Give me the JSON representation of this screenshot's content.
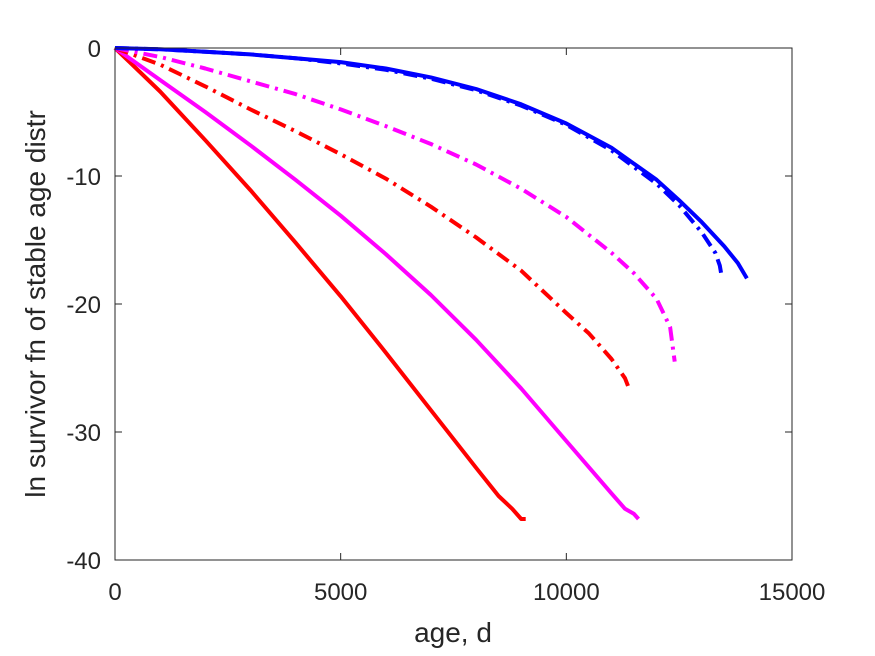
{
  "chart_data": {
    "type": "line",
    "title": "",
    "xlabel": "age, d",
    "ylabel": "ln survivor fn of stable age distr",
    "xlim": [
      0,
      15000
    ],
    "ylim": [
      -40,
      0
    ],
    "xticks": [
      0,
      5000,
      10000,
      15000
    ],
    "yticks": [
      0,
      -10,
      -20,
      -30,
      -40
    ],
    "xtick_labels": [
      "0",
      "5000",
      "10000",
      "15000"
    ],
    "ytick_labels": [
      "0",
      "-10",
      "-20",
      "-30",
      "-40"
    ],
    "grid": false,
    "legend": "none",
    "series": [
      {
        "color": "#ff0000",
        "style": "solid",
        "x": [
          0,
          1000,
          2000,
          3000,
          4000,
          5000,
          6000,
          7000,
          8000,
          8500,
          8800,
          9000,
          9100
        ],
        "y": [
          0,
          -3.4,
          -7.2,
          -11.1,
          -15.2,
          -19.4,
          -23.8,
          -28.3,
          -32.8,
          -35.0,
          -36.0,
          -36.8,
          -36.8
        ]
      },
      {
        "color": "#ff00ff",
        "style": "solid",
        "x": [
          0,
          1000,
          2000,
          3000,
          4000,
          5000,
          6000,
          7000,
          8000,
          9000,
          10000,
          11000,
          11300,
          11500,
          11600
        ],
        "y": [
          0,
          -2.5,
          -5.0,
          -7.6,
          -10.3,
          -13.1,
          -16.1,
          -19.3,
          -22.8,
          -26.6,
          -30.7,
          -34.8,
          -36.0,
          -36.4,
          -36.8
        ]
      },
      {
        "color": "#ff0000",
        "style": "dashdot",
        "x": [
          0,
          1000,
          2000,
          3000,
          4000,
          5000,
          6000,
          7000,
          8000,
          9000,
          10000,
          10500,
          11000,
          11300,
          11400
        ],
        "y": [
          0,
          -1.3,
          -3.0,
          -4.8,
          -6.5,
          -8.3,
          -10.2,
          -12.4,
          -14.8,
          -17.4,
          -20.7,
          -22.3,
          -24.3,
          -25.8,
          -26.7
        ]
      },
      {
        "color": "#ff00ff",
        "style": "dashdot",
        "x": [
          0,
          1000,
          2000,
          3000,
          4000,
          5000,
          6000,
          7000,
          8000,
          9000,
          10000,
          11000,
          11500,
          12000,
          12300,
          12400
        ],
        "y": [
          0,
          -0.7,
          -1.6,
          -2.6,
          -3.6,
          -4.8,
          -6.1,
          -7.5,
          -9.1,
          -11.0,
          -13.2,
          -16.0,
          -17.6,
          -19.6,
          -21.8,
          -24.5
        ]
      },
      {
        "color": "#0000ff",
        "style": "solid",
        "x": [
          0,
          1000,
          2000,
          3000,
          4000,
          5000,
          6000,
          7000,
          8000,
          9000,
          10000,
          11000,
          12000,
          12500,
          13000,
          13500,
          13800,
          14000
        ],
        "y": [
          0,
          -0.1,
          -0.3,
          -0.5,
          -0.8,
          -1.1,
          -1.6,
          -2.3,
          -3.2,
          -4.4,
          -5.9,
          -7.8,
          -10.3,
          -11.9,
          -13.6,
          -15.5,
          -16.8,
          -18.0
        ]
      },
      {
        "color": "#0000ff",
        "style": "dashdot",
        "x": [
          0,
          1000,
          2000,
          3000,
          4000,
          5000,
          6000,
          7000,
          8000,
          9000,
          10000,
          11000,
          12000,
          12500,
          13000,
          13300,
          13400,
          13450
        ],
        "y": [
          0,
          -0.1,
          -0.3,
          -0.5,
          -0.8,
          -1.2,
          -1.7,
          -2.4,
          -3.3,
          -4.5,
          -6.0,
          -8.0,
          -10.6,
          -12.3,
          -14.4,
          -16.0,
          -17.0,
          -18.0
        ]
      }
    ]
  }
}
